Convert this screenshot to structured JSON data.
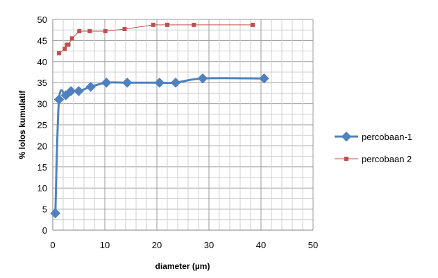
{
  "chart_data": {
    "type": "scatter",
    "xlabel": "diameter (µm)",
    "ylabel": "% lolos kumulatif",
    "xlim": [
      0,
      50
    ],
    "ylim": [
      0,
      50
    ],
    "x_ticks": [
      "0",
      "10",
      "20",
      "30",
      "40",
      "50"
    ],
    "y_ticks": [
      "0",
      "5",
      "10",
      "15",
      "20",
      "25",
      "30",
      "35",
      "40",
      "45",
      "50"
    ],
    "grid": true,
    "legend_position": "right",
    "series": [
      {
        "name": "percobaan-1",
        "color": "#4F81BD",
        "marker": "diamond",
        "line": "smooth",
        "x": [
          0.5,
          1.2,
          2.5,
          3.5,
          5.0,
          7.3,
          10.3,
          14.3,
          20.5,
          23.6,
          28.8,
          40.6
        ],
        "y": [
          4,
          31,
          32,
          33,
          33,
          34,
          35,
          35,
          35,
          35,
          36,
          36
        ]
      },
      {
        "name": "percobaan 2",
        "color": "#C0504D",
        "marker": "square",
        "line": "straight",
        "x": [
          1.2,
          2.3,
          2.7,
          3.0,
          3.7,
          5.1,
          7.1,
          10.1,
          13.8,
          19.3,
          22.0,
          27.1,
          38.4
        ],
        "y": [
          42,
          43,
          44,
          44,
          45.5,
          47.2,
          47.2,
          47.2,
          47.7,
          48.7,
          48.7,
          48.7,
          48.7
        ]
      }
    ]
  }
}
